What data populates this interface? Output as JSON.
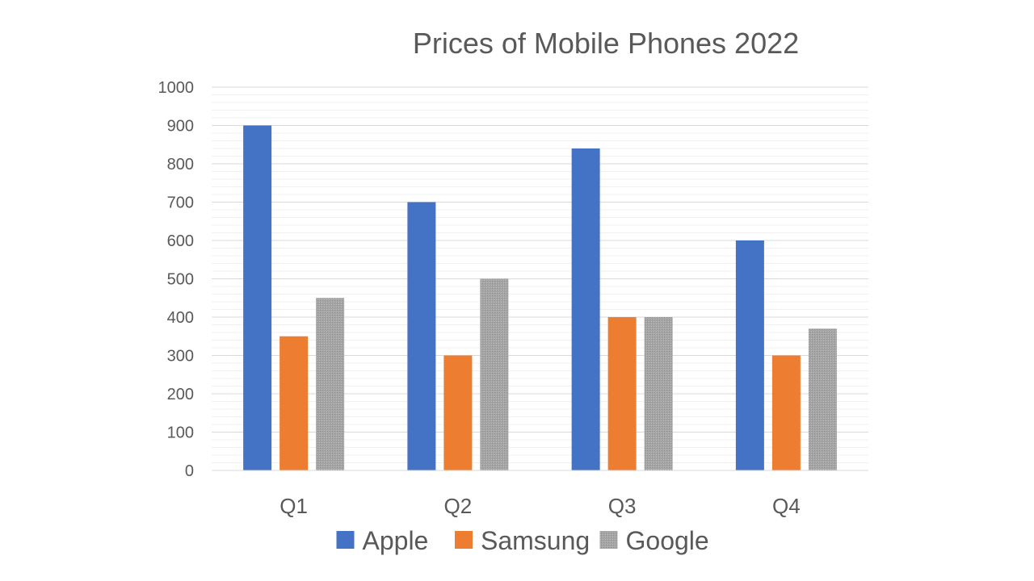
{
  "chart_data": {
    "type": "bar",
    "title": "Prices of Mobile Phones 2022",
    "xlabel": "",
    "ylabel": "",
    "categories": [
      "Q1",
      "Q2",
      "Q3",
      "Q4"
    ],
    "series": [
      {
        "name": "Apple",
        "values": [
          900,
          700,
          840,
          600
        ],
        "color": "#4472C4"
      },
      {
        "name": "Samsung",
        "values": [
          350,
          300,
          400,
          300
        ],
        "color": "#ED7D31"
      },
      {
        "name": "Google",
        "values": [
          450,
          500,
          400,
          370
        ],
        "color": "#A5A5A5"
      }
    ],
    "ylim": [
      0,
      1000
    ],
    "yticks": [
      "0",
      "100",
      "200",
      "300",
      "400",
      "500",
      "600",
      "700",
      "800",
      "900",
      "1000"
    ],
    "grid": true,
    "legend_position": "bottom"
  }
}
